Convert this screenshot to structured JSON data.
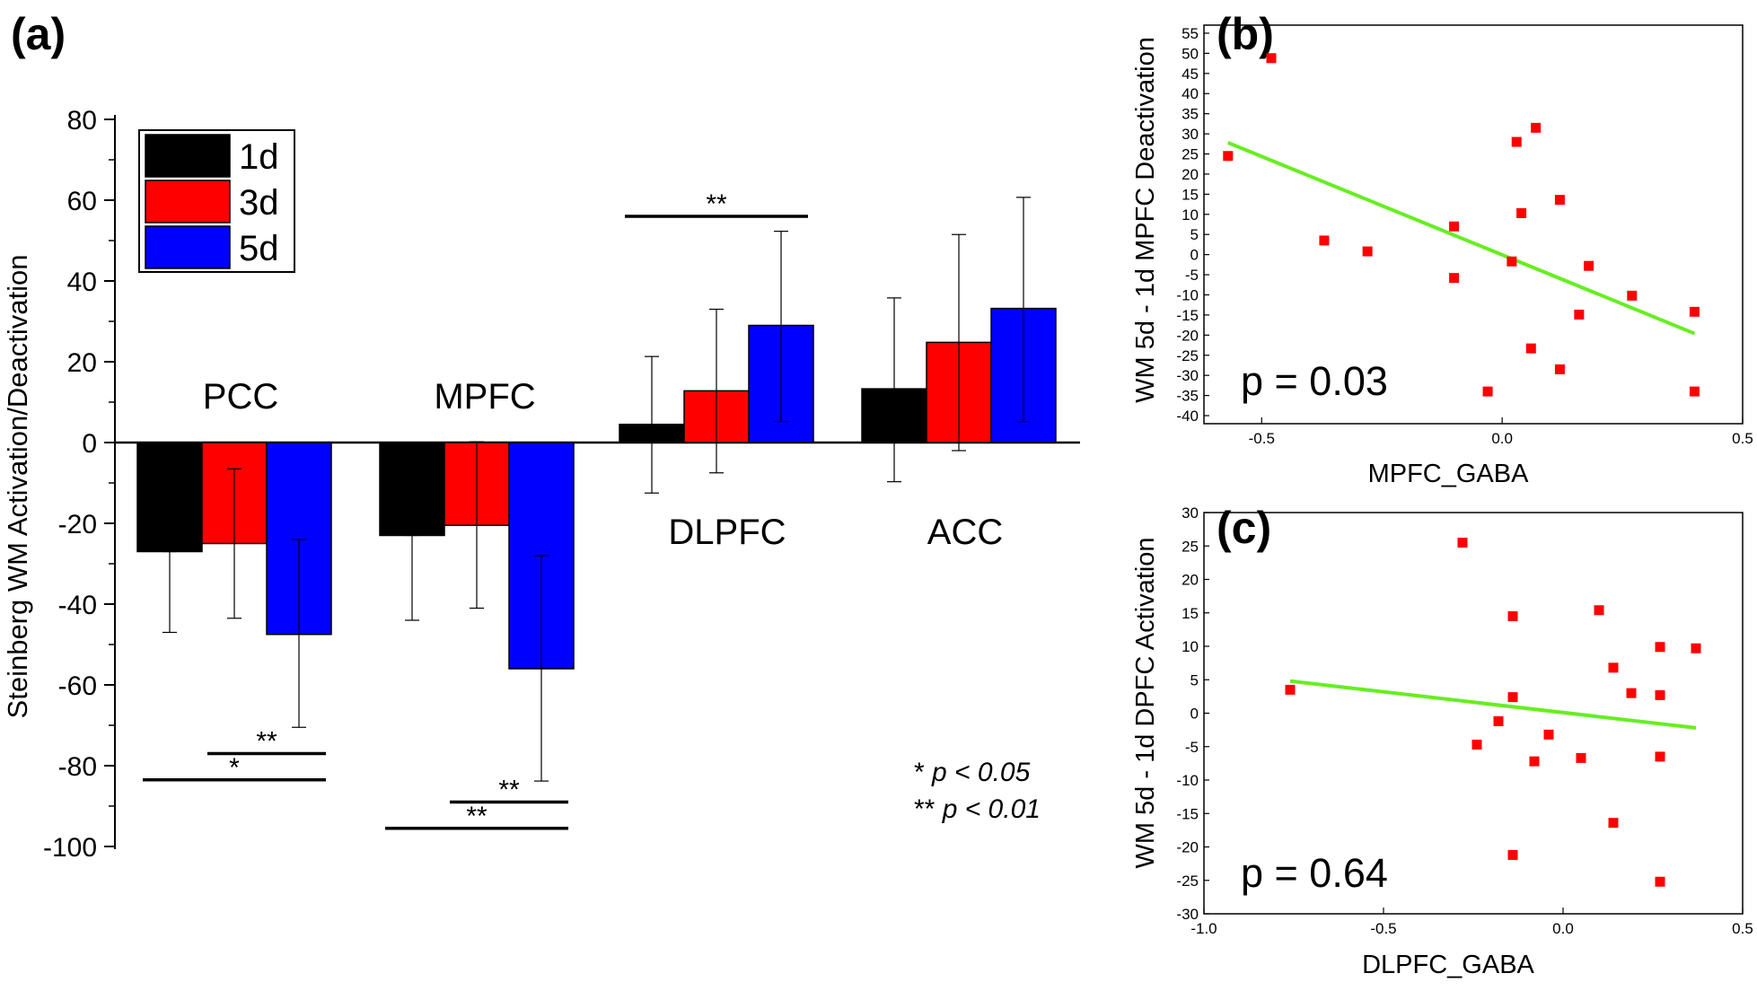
{
  "chart_data": [
    {
      "panel_label": "(a)",
      "type": "bar",
      "ylabel": "Steinberg WM Activation/Deactivation",
      "ylim": [
        -100,
        80
      ],
      "yticks": [
        80,
        60,
        40,
        20,
        0,
        -20,
        -40,
        -60,
        -80,
        -100
      ],
      "categories": [
        "PCC",
        "MPFC",
        "DLPFC",
        "ACC"
      ],
      "series": [
        {
          "name": "1d",
          "color": "#000000",
          "values": [
            -27,
            -23,
            4.5,
            13.3
          ],
          "err_low": [
            -47,
            -44,
            -12.5,
            -9.7
          ],
          "err_high": [
            -27,
            -23,
            21.3,
            35.8
          ]
        },
        {
          "name": "3d",
          "color": "#ff0000",
          "values": [
            -25,
            -20.5,
            12.8,
            24.8
          ],
          "err_low": [
            -43.5,
            -41,
            -7.5,
            -2
          ],
          "err_high": [
            -6.5,
            0.2,
            33,
            51.5
          ]
        },
        {
          "name": "5d",
          "color": "#0000ff",
          "values": [
            -47.5,
            -56,
            29,
            33.2
          ],
          "err_low": [
            -70.5,
            -83.8,
            5.2,
            5.2
          ],
          "err_high": [
            -24,
            -28,
            52.3,
            60.7
          ]
        }
      ],
      "significance": [
        {
          "label": "**",
          "y": -77,
          "from": "PCC.3d",
          "to": "PCC.5d"
        },
        {
          "label": "*",
          "y": -83.5,
          "from": "PCC.1d",
          "to": "PCC.5d"
        },
        {
          "label": "**",
          "y": -89,
          "from": "MPFC.3d",
          "to": "MPFC.5d"
        },
        {
          "label": "**",
          "y": -95.5,
          "from": "MPFC.1d",
          "to": "MPFC.5d"
        },
        {
          "label": "**",
          "y": 56,
          "from": "DLPFC.1d",
          "to": "DLPFC.5d"
        }
      ],
      "significance_key": [
        {
          "marks": "*",
          "text": "p < 0.05"
        },
        {
          "marks": "**",
          "text": "p < 0.01"
        }
      ]
    },
    {
      "panel_label": "(b)",
      "type": "scatter",
      "xlabel": "MPFC_GABA",
      "ylabel": "WM 5d - 1d MPFC Deactivation",
      "xlim": [
        -0.62,
        0.5
      ],
      "ylim": [
        -42,
        57
      ],
      "xticks": [
        -0.5,
        0.0,
        0.5
      ],
      "xtick_labels": [
        "-0.5",
        "0.0",
        "0.5"
      ],
      "yticks": [
        55,
        50,
        45,
        40,
        35,
        30,
        25,
        20,
        15,
        10,
        5,
        0,
        -5,
        -10,
        -15,
        -20,
        -25,
        -30,
        -35,
        -40
      ],
      "points": [
        [
          -0.57,
          24.5
        ],
        [
          -0.48,
          48.8
        ],
        [
          -0.37,
          3.5
        ],
        [
          -0.28,
          0.8
        ],
        [
          -0.1,
          7
        ],
        [
          -0.1,
          -5.8
        ],
        [
          -0.03,
          -34
        ],
        [
          0.02,
          -1.7
        ],
        [
          0.03,
          28
        ],
        [
          0.04,
          10.3
        ],
        [
          0.06,
          -23.3
        ],
        [
          0.07,
          31.5
        ],
        [
          0.12,
          13.6
        ],
        [
          0.12,
          -28.5
        ],
        [
          0.16,
          -14.9
        ],
        [
          0.18,
          -2.8
        ],
        [
          0.27,
          -10.2
        ],
        [
          0.4,
          -14.2
        ],
        [
          0.4,
          -34
        ]
      ],
      "fit_line": {
        "x": [
          -0.57,
          0.4
        ],
        "y": [
          27.8,
          -19.6
        ],
        "color": "#66ee22"
      },
      "annotation": "p = 0.03",
      "marker_color": "#ff0000"
    },
    {
      "panel_label": "(c)",
      "type": "scatter",
      "xlabel": "DLPFC_GABA",
      "ylabel": "WM 5d - 1d DPFC Activation",
      "xlim": [
        -1.0,
        0.5
      ],
      "ylim": [
        -30,
        30
      ],
      "xticks": [
        -1.0,
        -0.5,
        0.0,
        0.5
      ],
      "xtick_labels": [
        "-1.0",
        "-0.5",
        "0.0",
        "0.5"
      ],
      "yticks": [
        30,
        25,
        20,
        15,
        10,
        5,
        0,
        -5,
        -10,
        -15,
        -20,
        -25,
        -30
      ],
      "points": [
        [
          -0.76,
          3.5
        ],
        [
          -0.28,
          25.5
        ],
        [
          -0.24,
          -4.7
        ],
        [
          -0.18,
          -1.2
        ],
        [
          -0.14,
          14.5
        ],
        [
          -0.14,
          2.4
        ],
        [
          -0.14,
          -21.2
        ],
        [
          -0.08,
          -7.2
        ],
        [
          -0.04,
          -3.2
        ],
        [
          0.05,
          -6.7
        ],
        [
          0.1,
          15.4
        ],
        [
          0.14,
          6.8
        ],
        [
          0.14,
          -16.4
        ],
        [
          0.19,
          3
        ],
        [
          0.27,
          9.9
        ],
        [
          0.27,
          2.7
        ],
        [
          0.27,
          -6.5
        ],
        [
          0.27,
          -25.2
        ],
        [
          0.37,
          9.7
        ]
      ],
      "fit_line": {
        "x": [
          -0.76,
          0.37
        ],
        "y": [
          4.8,
          -2.2
        ],
        "color": "#66ee22"
      },
      "annotation": "p = 0.64",
      "marker_color": "#ff0000"
    }
  ]
}
